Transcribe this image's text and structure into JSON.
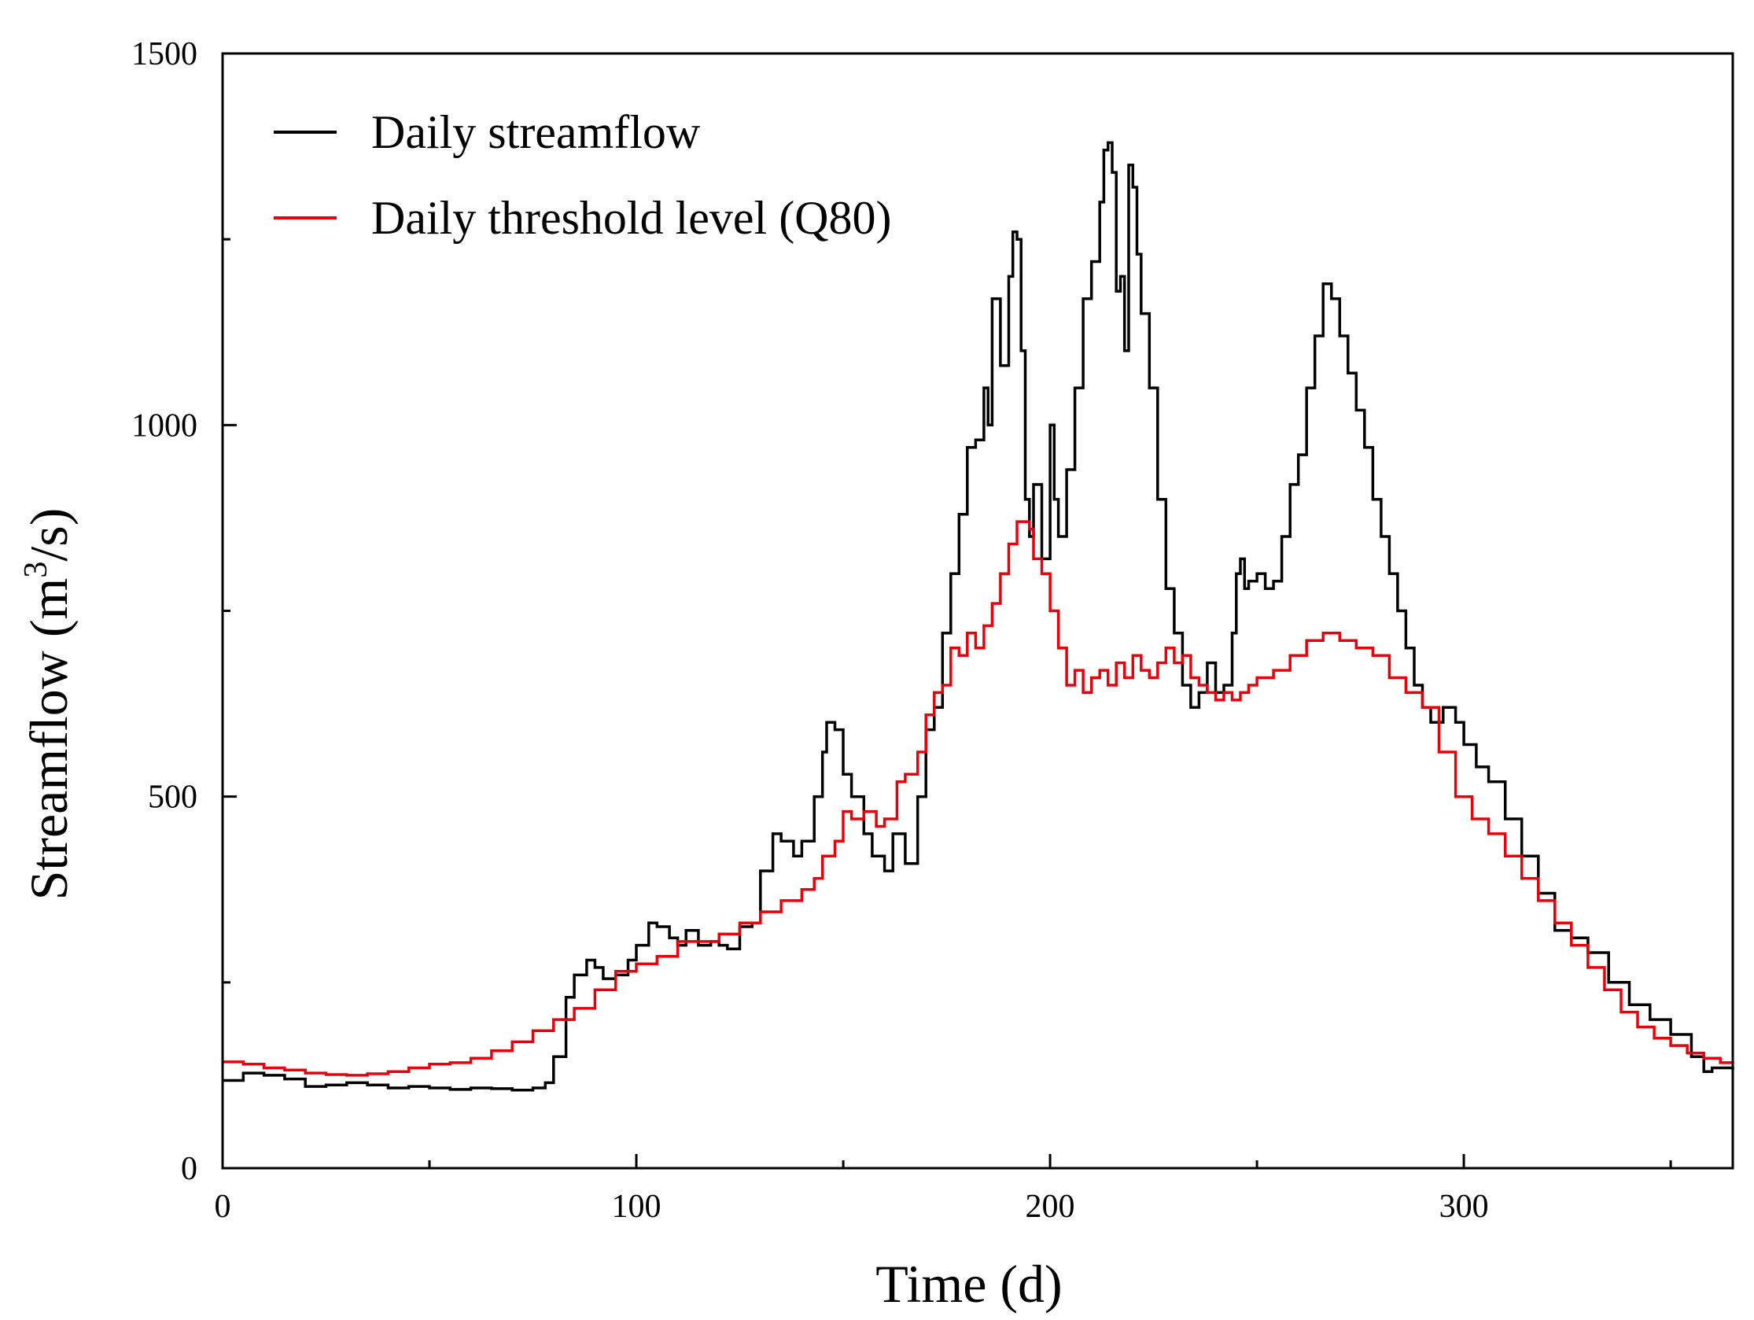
{
  "chart_data": {
    "type": "line",
    "title": "",
    "xlabel": "Time (d)",
    "ylabel_main": "Streamflow (m",
    "ylabel_sup": "3",
    "ylabel_tail": "/s)",
    "xlim": [
      0,
      365
    ],
    "ylim": [
      0,
      1500
    ],
    "x_ticks": [
      0,
      100,
      200,
      300
    ],
    "x_minor_ticks": [
      50,
      150,
      250,
      350
    ],
    "y_ticks": [
      0,
      500,
      1000,
      1500
    ],
    "y_minor_ticks": [
      250,
      750,
      1250
    ],
    "x_tick_labels": [
      "0",
      "100",
      "200",
      "300"
    ],
    "y_tick_labels": [
      "0",
      "500",
      "1000",
      "1500"
    ],
    "legend_position": "top-left",
    "series": [
      {
        "name": "Daily streamflow",
        "color": "#000000",
        "x": [
          0,
          5,
          10,
          15,
          20,
          25,
          30,
          35,
          40,
          45,
          50,
          55,
          60,
          65,
          70,
          75,
          78,
          80,
          83,
          85,
          88,
          90,
          92,
          95,
          98,
          100,
          103,
          105,
          108,
          110,
          112,
          115,
          118,
          120,
          122,
          125,
          128,
          130,
          133,
          135,
          138,
          140,
          143,
          145,
          146,
          148,
          150,
          152,
          155,
          157,
          160,
          162,
          165,
          168,
          170,
          172,
          174,
          176,
          178,
          180,
          182,
          184,
          185,
          186,
          188,
          190,
          191,
          192,
          193,
          194,
          195,
          196,
          198,
          200,
          201,
          202,
          204,
          206,
          208,
          210,
          212,
          213,
          214,
          215,
          216,
          217,
          218,
          219,
          220,
          221,
          222,
          224,
          226,
          228,
          230,
          232,
          234,
          236,
          238,
          240,
          242,
          244,
          245,
          246,
          247,
          248,
          250,
          252,
          254,
          256,
          258,
          260,
          262,
          264,
          266,
          268,
          270,
          272,
          274,
          276,
          278,
          280,
          282,
          284,
          286,
          288,
          290,
          292,
          295,
          298,
          300,
          303,
          306,
          310,
          314,
          318,
          322,
          326,
          330,
          335,
          340,
          345,
          350,
          355,
          358,
          360,
          365
        ],
        "values": [
          118,
          128,
          125,
          120,
          110,
          112,
          115,
          112,
          108,
          110,
          108,
          106,
          108,
          107,
          105,
          108,
          115,
          150,
          230,
          260,
          280,
          270,
          255,
          260,
          280,
          300,
          330,
          325,
          310,
          300,
          320,
          300,
          305,
          300,
          295,
          325,
          330,
          400,
          450,
          440,
          420,
          440,
          500,
          560,
          600,
          590,
          530,
          500,
          450,
          420,
          400,
          450,
          410,
          500,
          590,
          620,
          720,
          800,
          880,
          970,
          980,
          1050,
          1000,
          1170,
          1080,
          1200,
          1260,
          1250,
          1100,
          900,
          850,
          920,
          820,
          1000,
          900,
          850,
          940,
          1050,
          1170,
          1220,
          1300,
          1370,
          1380,
          1340,
          1180,
          1200,
          1100,
          1350,
          1320,
          1230,
          1150,
          1050,
          900,
          780,
          720,
          650,
          620,
          640,
          680,
          640,
          650,
          720,
          800,
          820,
          780,
          790,
          800,
          780,
          790,
          850,
          920,
          960,
          1050,
          1120,
          1190,
          1170,
          1120,
          1070,
          1020,
          970,
          900,
          850,
          800,
          750,
          700,
          650,
          620,
          600,
          620,
          600,
          570,
          540,
          520,
          470,
          420,
          370,
          320,
          310,
          290,
          250,
          220,
          200,
          180,
          150,
          130,
          135,
          132
        ]
      },
      {
        "name": "Daily threshold level (Q80)",
        "color": "#e8000b",
        "x": [
          0,
          5,
          10,
          15,
          20,
          25,
          30,
          35,
          40,
          45,
          50,
          55,
          60,
          65,
          70,
          75,
          80,
          85,
          90,
          95,
          100,
          105,
          110,
          115,
          120,
          125,
          130,
          135,
          140,
          143,
          145,
          148,
          150,
          152,
          155,
          158,
          160,
          163,
          165,
          168,
          170,
          172,
          174,
          176,
          178,
          180,
          182,
          184,
          186,
          188,
          190,
          192,
          194,
          195,
          196,
          198,
          200,
          202,
          204,
          206,
          208,
          210,
          212,
          214,
          216,
          218,
          220,
          222,
          224,
          226,
          228,
          230,
          232,
          234,
          236,
          238,
          240,
          242,
          244,
          246,
          248,
          250,
          254,
          258,
          262,
          266,
          270,
          274,
          278,
          282,
          286,
          290,
          294,
          298,
          302,
          306,
          310,
          314,
          318,
          322,
          326,
          330,
          334,
          338,
          342,
          346,
          350,
          354,
          358,
          362,
          365
        ],
        "values": [
          143,
          140,
          135,
          132,
          128,
          126,
          125,
          127,
          130,
          135,
          140,
          142,
          148,
          158,
          170,
          185,
          200,
          215,
          240,
          265,
          275,
          285,
          305,
          305,
          315,
          330,
          345,
          360,
          375,
          390,
          420,
          440,
          480,
          470,
          480,
          460,
          470,
          520,
          530,
          560,
          610,
          640,
          650,
          700,
          690,
          720,
          700,
          730,
          760,
          800,
          840,
          870,
          870,
          860,
          820,
          800,
          750,
          700,
          650,
          670,
          640,
          660,
          670,
          650,
          680,
          660,
          690,
          670,
          660,
          680,
          700,
          680,
          690,
          660,
          650,
          640,
          630,
          640,
          630,
          640,
          650,
          660,
          670,
          690,
          710,
          720,
          710,
          700,
          690,
          660,
          640,
          620,
          560,
          500,
          470,
          450,
          420,
          390,
          360,
          330,
          300,
          270,
          240,
          210,
          190,
          175,
          165,
          155,
          148,
          142,
          140
        ]
      }
    ]
  }
}
